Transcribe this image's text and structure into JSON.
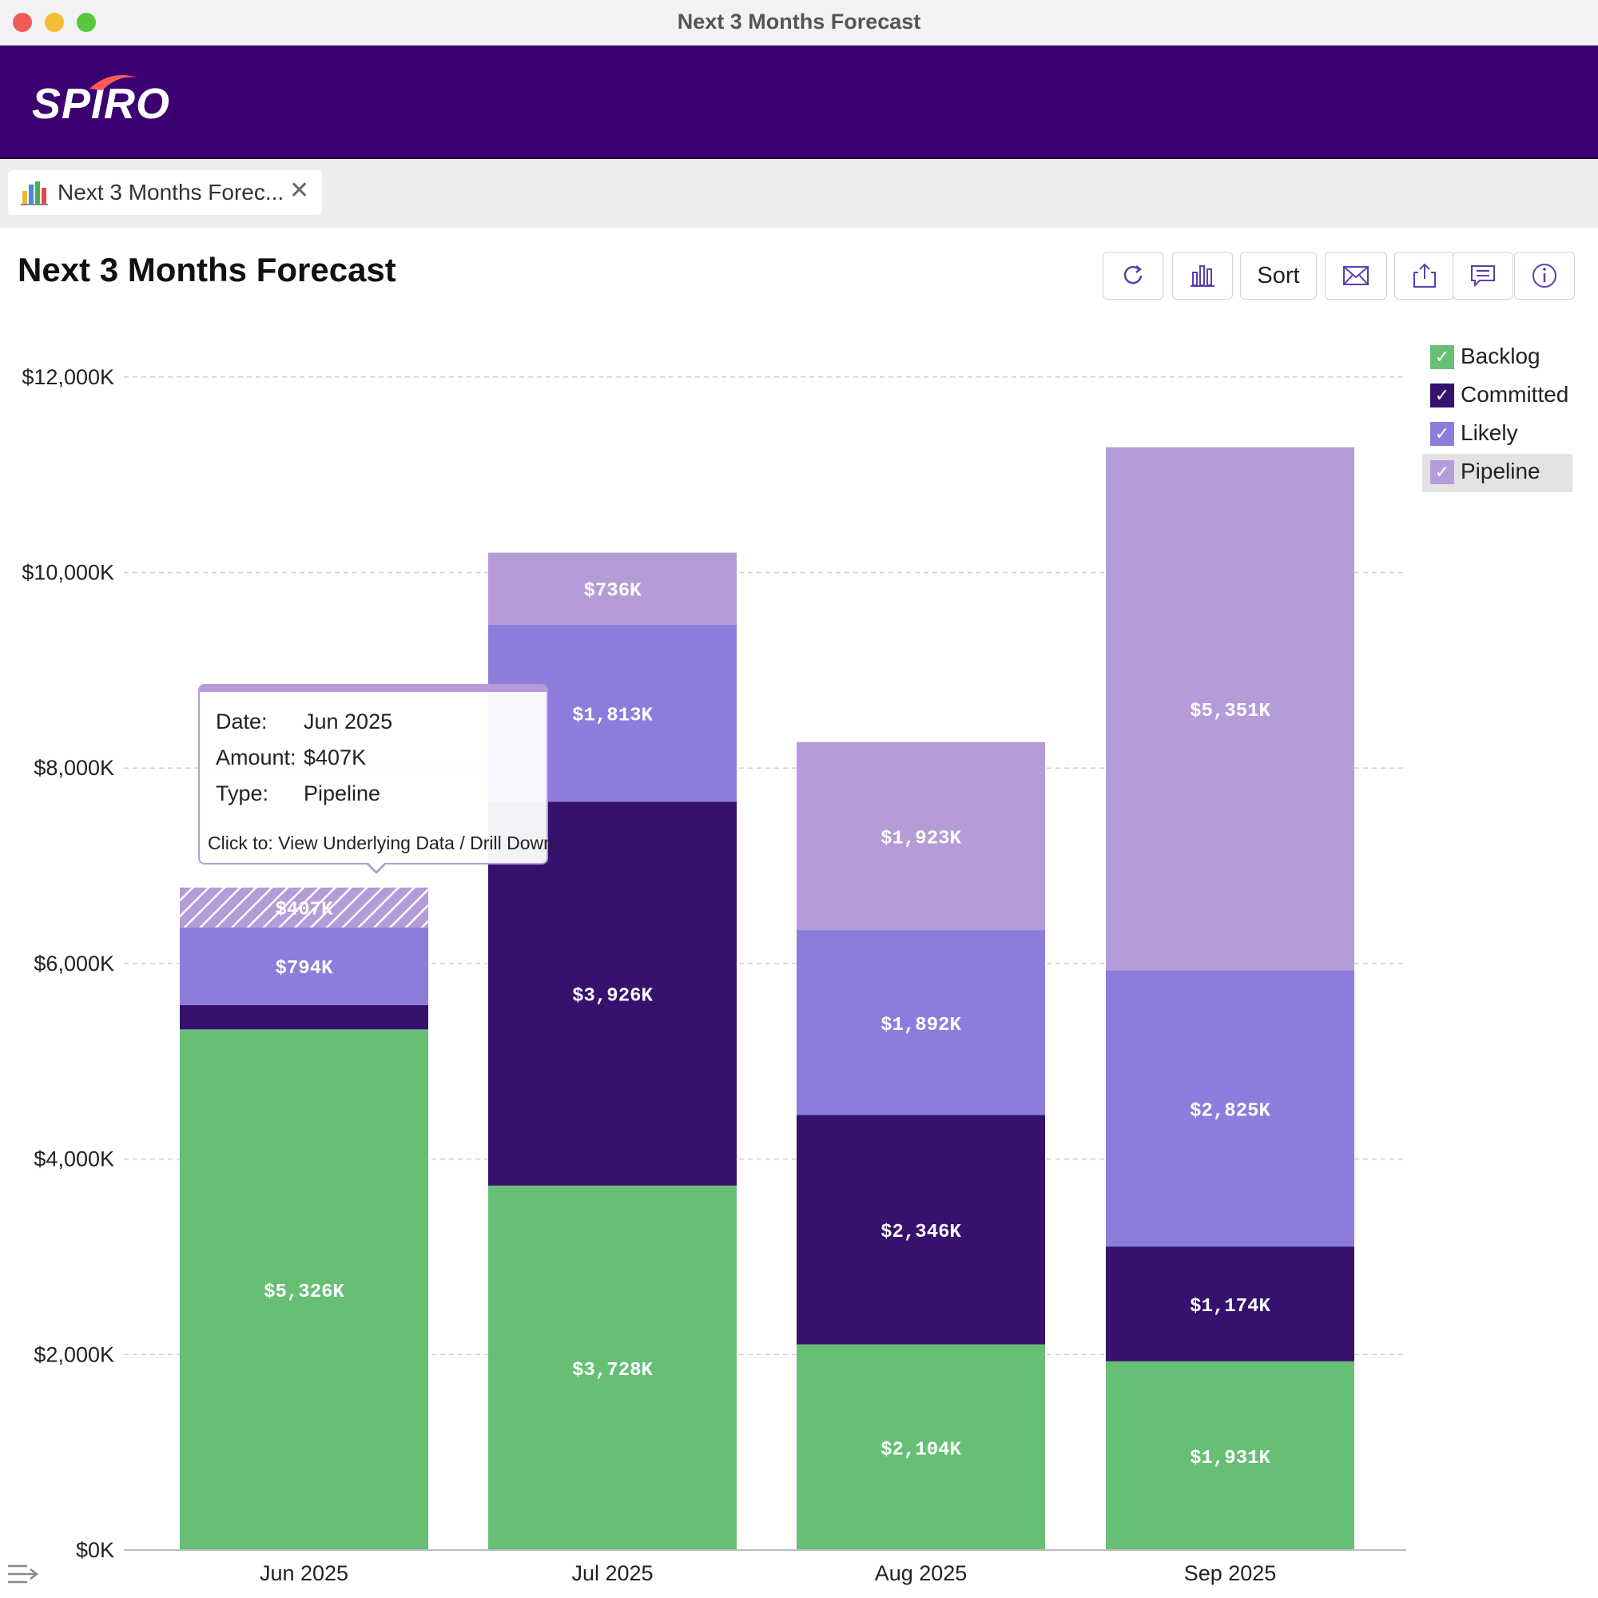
{
  "window": {
    "title": "Next 3 Months Forecast"
  },
  "brand": {
    "logo_text": "SPIRO"
  },
  "tab": {
    "label": "Next 3 Months Forec...",
    "close": "✕"
  },
  "page": {
    "title": "Next 3 Months Forecast"
  },
  "toolbar": {
    "sort_label": "Sort",
    "icons": [
      "refresh-icon",
      "bar-chart-icon",
      "sort-button",
      "email-icon",
      "export-icon",
      "comment-icon",
      "info-icon"
    ]
  },
  "legend": [
    {
      "label": "Backlog",
      "color": "#67bf76",
      "check": "✓"
    },
    {
      "label": "Committed",
      "color": "#36116d",
      "check": "✓"
    },
    {
      "label": "Likely",
      "color": "#8e7cdc",
      "check": "✓"
    },
    {
      "label": "Pipeline",
      "color": "#b59bd8",
      "check": "✓"
    }
  ],
  "tooltip": {
    "date_key": "Date:",
    "date_val": "Jun 2025",
    "amount_key": "Amount:",
    "amount_val": "$407K",
    "type_key": "Type:",
    "type_val": "Pipeline",
    "hint": "Click to: View Underlying Data / Drill Down"
  },
  "chart_data": {
    "type": "bar",
    "stacked": true,
    "title": "Next 3 Months Forecast",
    "categories": [
      "Jun 2025",
      "Jul 2025",
      "Aug 2025",
      "Sep 2025"
    ],
    "series": [
      {
        "name": "Backlog",
        "color": "#67bf76",
        "values": [
          5326,
          3728,
          2104,
          1931
        ],
        "labels": [
          "$5,326K",
          "$3,728K",
          "$2,104K",
          "$1,931K"
        ]
      },
      {
        "name": "Committed",
        "color": "#36116d",
        "values": [
          250,
          3926,
          2346,
          1174
        ],
        "labels": [
          "",
          "$3,926K",
          "$2,346K",
          "$1,174K"
        ]
      },
      {
        "name": "Likely",
        "color": "#8e7cdc",
        "values": [
          794,
          1813,
          1892,
          2825
        ],
        "labels": [
          "$794K",
          "$1,813K",
          "$1,892K",
          "$2,825K"
        ]
      },
      {
        "name": "Pipeline",
        "color": "#b59bd8",
        "values": [
          407,
          736,
          1923,
          5351
        ],
        "labels": [
          "$407K",
          "$736K",
          "$1,923K",
          "$5,351K"
        ]
      }
    ],
    "hovered": {
      "category": "Jun 2025",
      "series": "Pipeline"
    },
    "y_ticks": [
      0,
      2000,
      4000,
      6000,
      8000,
      10000,
      12000
    ],
    "y_tick_labels": [
      "$0K",
      "$2,000K",
      "$4,000K",
      "$6,000K",
      "$8,000K",
      "$10,000K",
      "$12,000K"
    ],
    "ylim": [
      0,
      12000
    ],
    "grid": true,
    "legend_position": "top-right"
  }
}
